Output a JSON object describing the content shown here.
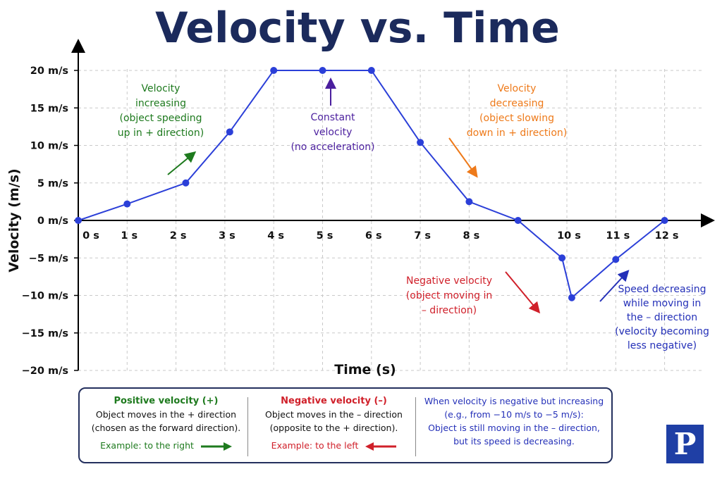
{
  "chart_data": {
    "type": "line",
    "title": "Velocity vs. Time",
    "xlabel": "Time (s)",
    "ylabel": "Velocity (m/s)",
    "x_ticks": [
      "0 s",
      "1 s",
      "2 s",
      "3 s",
      "4 s",
      "5 s",
      "6 s",
      "7 s",
      "8 s",
      "10 s",
      "11 s",
      "12 s"
    ],
    "x_tick_values": [
      0,
      1,
      2,
      3,
      4,
      5,
      6,
      7,
      8,
      10,
      11,
      12
    ],
    "y_ticks": [
      "20 m/s",
      "15 m/s",
      "10 m/s",
      "5 m/s",
      "0 m/s",
      "−5 m/s",
      "−10 m/s",
      "−15 m/s",
      "−20 m/s"
    ],
    "y_tick_values": [
      20,
      15,
      10,
      5,
      0,
      -5,
      -10,
      -15,
      -20
    ],
    "xlim": [
      0,
      12.8
    ],
    "ylim": [
      -20,
      20
    ],
    "grid": true,
    "series": [
      {
        "color": "#2b3fd8",
        "points": [
          [
            0,
            0
          ],
          [
            1,
            2.2
          ],
          [
            2.2,
            5
          ],
          [
            3.1,
            11.8
          ],
          [
            4,
            20
          ],
          [
            5,
            20
          ],
          [
            6,
            20
          ],
          [
            7,
            10.4
          ],
          [
            8,
            2.5
          ],
          [
            9,
            0
          ],
          [
            9.9,
            -5
          ],
          [
            10.1,
            -10.3
          ],
          [
            11,
            -5.2
          ],
          [
            12,
            0
          ]
        ]
      }
    ],
    "annotations": [
      {
        "lines": [
          "Velocity",
          "increasing",
          "(object speeding",
          "up in + direction)"
        ],
        "color": "#1e7a1e"
      },
      {
        "lines": [
          "Constant",
          "velocity",
          "(no acceleration)"
        ],
        "color": "#4b1f9e"
      },
      {
        "lines": [
          "Velocity",
          "decreasing",
          "(object slowing",
          "down in + direction)"
        ],
        "color": "#ee7a1a"
      },
      {
        "lines": [
          "Negative velocity",
          "(object moving in",
          "– direction)"
        ],
        "color": "#d0202a"
      },
      {
        "lines": [
          "Speed decreasing",
          "while moving in",
          "the – direction",
          "(velocity becoming",
          "less negative)"
        ],
        "color": "#2430b8"
      }
    ]
  },
  "legend": {
    "positive": {
      "heading": "Positive velocity (+)",
      "line1": "Object moves in the + direction",
      "line2": "(chosen as the forward direction).",
      "example": "Example: to the right",
      "color": "#1e7a1e"
    },
    "negative": {
      "heading": "Negative velocity (–)",
      "line1": "Object moves in the – direction",
      "line2": "(opposite to the + direction).",
      "example": "Example: to the left",
      "color": "#d0202a"
    },
    "note": {
      "line1": "When velocity is negative but increasing",
      "line2": "(e.g., from −10 m/s to −5 m/s):",
      "line3": "Object is still moving in the – direction,",
      "line4": "but its speed is decreasing.",
      "color": "#2430b8"
    }
  },
  "logo": {
    "letter": "P",
    "icon": "p-logo-icon"
  }
}
